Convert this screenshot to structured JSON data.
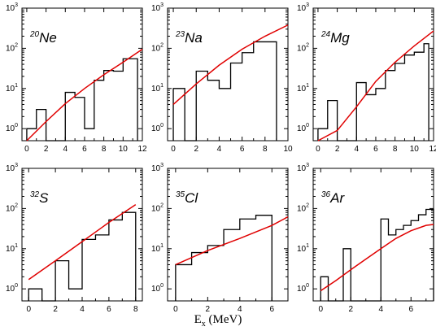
{
  "figure": {
    "xlabel_main": "E",
    "xlabel_sub": "x",
    "xlabel_unit": "(MeV)",
    "y_tick_base": "10",
    "y_tick_exponents": [
      "0",
      "1",
      "2",
      "3"
    ],
    "hist_color": "#000000",
    "curve_color": "#e00000"
  },
  "chart_data": [
    {
      "type": "line",
      "label_mass": "20",
      "label_symbol": "Ne",
      "xlim": [
        -0.5,
        12
      ],
      "ylim_log10": [
        -0.3,
        3
      ],
      "y_scale": "log",
      "xticks": [
        0,
        2,
        4,
        6,
        8,
        10,
        12
      ],
      "histogram": {
        "edges": [
          0,
          1,
          2,
          4,
          5,
          6,
          7,
          8,
          9,
          10,
          11.5
        ],
        "values": [
          1,
          3,
          0.4,
          8,
          6,
          1,
          16,
          28,
          27,
          55
        ]
      },
      "curve": {
        "x": [
          0,
          2,
          4,
          6,
          8,
          10,
          12
        ],
        "y": [
          0.45,
          1.5,
          4.2,
          10,
          22,
          45,
          95
        ]
      }
    },
    {
      "type": "line",
      "label_mass": "23",
      "label_symbol": "Na",
      "xlim": [
        -0.5,
        10
      ],
      "ylim_log10": [
        -0.3,
        3
      ],
      "y_scale": "log",
      "xticks": [
        0,
        2,
        4,
        6,
        8,
        10
      ],
      "histogram": {
        "edges": [
          0,
          1,
          2,
          3,
          4,
          5,
          6,
          7,
          9
        ],
        "values": [
          10,
          0.4,
          27,
          16,
          10,
          43,
          78,
          145
        ]
      },
      "curve": {
        "x": [
          0,
          2,
          4,
          6,
          8,
          10
        ],
        "y": [
          4,
          13,
          38,
          95,
          200,
          380
        ]
      }
    },
    {
      "type": "line",
      "label_mass": "24",
      "label_symbol": "Mg",
      "xlim": [
        -0.5,
        12
      ],
      "ylim_log10": [
        -0.3,
        3
      ],
      "y_scale": "log",
      "xticks": [
        0,
        2,
        4,
        6,
        8,
        10,
        12
      ],
      "histogram": {
        "edges": [
          0,
          1,
          2,
          4,
          5,
          6,
          7,
          8,
          9,
          10,
          11,
          11.5
        ],
        "values": [
          1,
          5,
          0.4,
          14,
          7,
          10,
          28,
          42,
          68,
          80,
          130
        ]
      },
      "curve": {
        "x": [
          0,
          2,
          4,
          6,
          8,
          10,
          12
        ],
        "y": [
          0.45,
          0.9,
          3.5,
          15,
          45,
          115,
          270
        ]
      }
    },
    {
      "type": "line",
      "label_mass": "32",
      "label_symbol": "S",
      "xlim": [
        -0.5,
        8.5
      ],
      "ylim_log10": [
        -0.3,
        3
      ],
      "y_scale": "log",
      "xticks": [
        0,
        2,
        4,
        6,
        8
      ],
      "histogram": {
        "edges": [
          0,
          1,
          2,
          3,
          4,
          5,
          6,
          7,
          8
        ],
        "values": [
          1,
          0.4,
          5,
          1,
          17,
          22,
          52,
          80
        ]
      },
      "curve": {
        "x": [
          0,
          2,
          4,
          6,
          8
        ],
        "y": [
          1.7,
          5,
          15,
          45,
          125
        ]
      }
    },
    {
      "type": "line",
      "label_mass": "35",
      "label_symbol": "Cl",
      "xlim": [
        -0.5,
        7
      ],
      "ylim_log10": [
        -0.3,
        3
      ],
      "y_scale": "log",
      "xticks": [
        0,
        2,
        4,
        6
      ],
      "histogram": {
        "edges": [
          0,
          1,
          2,
          3,
          4,
          5,
          6
        ],
        "values": [
          4,
          8,
          12,
          30,
          55,
          68
        ]
      },
      "curve": {
        "x": [
          0,
          2,
          4,
          6,
          7
        ],
        "y": [
          4,
          9,
          18,
          38,
          62
        ]
      }
    },
    {
      "type": "line",
      "label_mass": "36",
      "label_symbol": "Ar",
      "xlim": [
        -0.5,
        7.5
      ],
      "ylim_log10": [
        -0.3,
        3
      ],
      "y_scale": "log",
      "xticks": [
        0,
        2,
        4,
        6
      ],
      "histogram": {
        "edges": [
          0,
          0.5,
          1.5,
          2,
          4,
          4.5,
          5,
          5.5,
          6,
          6.5,
          7,
          7.5
        ],
        "values": [
          2,
          0.4,
          10,
          0.4,
          55,
          22,
          30,
          38,
          50,
          70,
          95
        ]
      },
      "curve": {
        "x": [
          0,
          1,
          2,
          3,
          4,
          5,
          6,
          7,
          7.5
        ],
        "y": [
          0.9,
          1.6,
          3,
          5.5,
          10,
          18,
          28,
          38,
          40
        ]
      }
    }
  ]
}
